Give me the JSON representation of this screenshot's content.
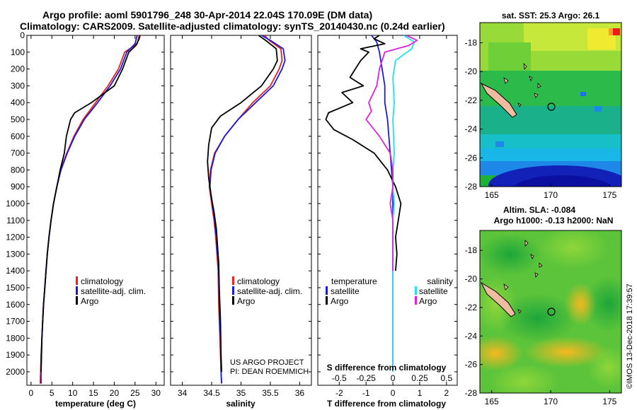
{
  "header": {
    "line1": "Argo profile: aoml 5901796_248 30-Apr-2014 22.04S 170.09E (DM data)",
    "line2": "Climatology: CARS2009. Satellite-adjusted climatology: synTS_20140430.nc (0.24d earlier)"
  },
  "colors": {
    "climatology": "#e8231f",
    "satellite": "#1a1adc",
    "argo": "#000000",
    "salinity_sat": "#22e0f0",
    "salinity_argo": "#e020e0"
  },
  "chart_data": [
    {
      "type": "line",
      "id": "temperature",
      "xlabel": "temperature (deg C)",
      "xlim": [
        -1,
        32
      ],
      "ylim": [
        2080,
        0
      ],
      "xticks": [
        0,
        5,
        10,
        15,
        20,
        25,
        30
      ],
      "yticks": [
        0,
        100,
        200,
        300,
        400,
        500,
        600,
        700,
        800,
        900,
        1000,
        1100,
        1200,
        1300,
        1400,
        1500,
        1600,
        1700,
        1800,
        1900,
        2000
      ],
      "legend": [
        "climatology",
        "satellite-adj. clim.",
        "Argo"
      ],
      "series": [
        {
          "name": "climatology",
          "color": "#e8231f",
          "points": [
            [
              26,
              0
            ],
            [
              25.5,
              50
            ],
            [
              22.5,
              100
            ],
            [
              21,
              200
            ],
            [
              18.5,
              300
            ],
            [
              15.5,
              400
            ],
            [
              12.5,
              500
            ],
            [
              10.3,
              600
            ],
            [
              8.6,
              700
            ],
            [
              7.1,
              800
            ],
            [
              6.2,
              900
            ],
            [
              5.4,
              1000
            ],
            [
              4.8,
              1100
            ],
            [
              4.3,
              1200
            ],
            [
              3.9,
              1300
            ],
            [
              3.6,
              1400
            ],
            [
              3.3,
              1500
            ],
            [
              3.0,
              1600
            ],
            [
              2.8,
              1700
            ],
            [
              2.6,
              1800
            ],
            [
              2.4,
              1900
            ],
            [
              2.3,
              2000
            ],
            [
              2.2,
              2070
            ]
          ]
        },
        {
          "name": "satellite-adj. clim.",
          "color": "#1a1adc",
          "points": [
            [
              25.5,
              0
            ],
            [
              25,
              50
            ],
            [
              23,
              100
            ],
            [
              21.5,
              200
            ],
            [
              19,
              300
            ],
            [
              16,
              400
            ],
            [
              12.8,
              500
            ],
            [
              10.5,
              600
            ],
            [
              8.7,
              700
            ],
            [
              7.2,
              800
            ],
            [
              6.2,
              900
            ],
            [
              5.4,
              1000
            ],
            [
              4.8,
              1100
            ],
            [
              4.3,
              1200
            ],
            [
              3.9,
              1300
            ],
            [
              3.6,
              1400
            ],
            [
              3.3,
              1500
            ],
            [
              3.0,
              1600
            ],
            [
              2.8,
              1700
            ],
            [
              2.6,
              1800
            ],
            [
              2.5,
              1900
            ],
            [
              2.4,
              2000
            ],
            [
              2.4,
              2070
            ]
          ]
        },
        {
          "name": "Argo",
          "color": "#000000",
          "points": [
            [
              26.2,
              0
            ],
            [
              26,
              20
            ],
            [
              25.2,
              60
            ],
            [
              23.5,
              100
            ],
            [
              22,
              200
            ],
            [
              20,
              300
            ],
            [
              14.5,
              400
            ],
            [
              10.5,
              460
            ],
            [
              9.5,
              500
            ],
            [
              8.5,
              600
            ],
            [
              8,
              700
            ],
            [
              7,
              800
            ],
            [
              6.2,
              900
            ],
            [
              5.4,
              1000
            ],
            [
              4.8,
              1100
            ],
            [
              4.3,
              1200
            ],
            [
              3.9,
              1300
            ],
            [
              3.6,
              1400
            ],
            [
              3.3,
              1500
            ],
            [
              3.0,
              1600
            ],
            [
              2.8,
              1700
            ],
            [
              2.6,
              1800
            ],
            [
              2.5,
              1900
            ],
            [
              2.4,
              2000
            ]
          ]
        }
      ]
    },
    {
      "type": "line",
      "id": "salinity",
      "xlabel": "salinity",
      "xlim": [
        33.8,
        36.2
      ],
      "ylim": [
        2080,
        0
      ],
      "xticks": [
        34,
        34.5,
        35,
        35.5,
        36
      ],
      "legend": [
        "climatology",
        "satellite-adj. clim.",
        "Argo"
      ],
      "series": [
        {
          "name": "climatology",
          "color": "#e8231f",
          "points": [
            [
              35.4,
              0
            ],
            [
              35.48,
              30
            ],
            [
              35.68,
              80
            ],
            [
              35.7,
              150
            ],
            [
              35.65,
              200
            ],
            [
              35.5,
              300
            ],
            [
              35.2,
              400
            ],
            [
              34.95,
              500
            ],
            [
              34.72,
              600
            ],
            [
              34.55,
              700
            ],
            [
              34.48,
              800
            ],
            [
              34.46,
              900
            ],
            [
              34.5,
              1000
            ],
            [
              34.54,
              1100
            ],
            [
              34.57,
              1200
            ],
            [
              34.59,
              1300
            ],
            [
              34.61,
              1400
            ],
            [
              34.62,
              1600
            ],
            [
              34.64,
              1800
            ],
            [
              34.66,
              2000
            ],
            [
              34.67,
              2070
            ]
          ]
        },
        {
          "name": "satellite-adj. clim.",
          "color": "#1a1adc",
          "points": [
            [
              35.35,
              0
            ],
            [
              35.5,
              30
            ],
            [
              35.72,
              80
            ],
            [
              35.75,
              150
            ],
            [
              35.7,
              200
            ],
            [
              35.55,
              300
            ],
            [
              35.25,
              400
            ],
            [
              34.95,
              500
            ],
            [
              34.72,
              600
            ],
            [
              34.56,
              700
            ],
            [
              34.49,
              800
            ],
            [
              34.47,
              900
            ],
            [
              34.51,
              1000
            ],
            [
              34.55,
              1100
            ],
            [
              34.58,
              1200
            ],
            [
              34.6,
              1300
            ],
            [
              34.62,
              1400
            ],
            [
              34.63,
              1600
            ],
            [
              34.65,
              1800
            ],
            [
              34.66,
              2000
            ],
            [
              34.67,
              2070
            ]
          ]
        },
        {
          "name": "Argo",
          "color": "#000000",
          "points": [
            [
              35.3,
              0
            ],
            [
              35.42,
              30
            ],
            [
              35.6,
              80
            ],
            [
              35.62,
              150
            ],
            [
              35.55,
              200
            ],
            [
              35.35,
              300
            ],
            [
              35,
              400
            ],
            [
              34.65,
              480
            ],
            [
              34.5,
              550
            ],
            [
              34.45,
              650
            ],
            [
              34.43,
              750
            ],
            [
              34.45,
              850
            ],
            [
              34.49,
              950
            ],
            [
              34.54,
              1050
            ],
            [
              34.58,
              1150
            ],
            [
              34.6,
              1250
            ],
            [
              34.62,
              1350
            ],
            [
              34.63,
              1500
            ],
            [
              34.65,
              1700
            ],
            [
              34.66,
              1900
            ],
            [
              34.67,
              2000
            ]
          ]
        }
      ]
    },
    {
      "type": "line",
      "id": "difference",
      "xlabel": "T difference from climatology",
      "xlabel2": "S difference from climatology",
      "xlim": [
        -2.8,
        2.4
      ],
      "ylim": [
        2080,
        0
      ],
      "xticks": [
        -2,
        -1,
        0,
        1,
        2
      ],
      "xticks2_labels": [
        "-0.5",
        "-0.25",
        "0",
        "0.25",
        "0.5"
      ],
      "legend_left_title": "temperature",
      "legend_right_title": "salinity",
      "legend_left": [
        "satellite",
        "Argo"
      ],
      "legend_right": [
        "satellite",
        "Argo"
      ],
      "series": [
        {
          "name": "temperature satellite",
          "color": "#1a1adc",
          "points": [
            [
              -0.8,
              0
            ],
            [
              -0.6,
              40
            ],
            [
              -0.5,
              100
            ],
            [
              -0.4,
              200
            ],
            [
              -0.3,
              300
            ],
            [
              -0.3,
              400
            ],
            [
              -0.2,
              500
            ],
            [
              -0.15,
              600
            ],
            [
              -0.1,
              700
            ],
            [
              -0.05,
              800
            ],
            [
              0,
              900
            ],
            [
              0,
              1000
            ],
            [
              0,
              2000
            ]
          ]
        },
        {
          "name": "temperature Argo",
          "color": "#000000",
          "points": [
            [
              -0.5,
              0
            ],
            [
              -0.7,
              20
            ],
            [
              -0.3,
              50
            ],
            [
              -1.2,
              80
            ],
            [
              -0.9,
              100
            ],
            [
              -1.2,
              150
            ],
            [
              -1.4,
              200
            ],
            [
              -1.6,
              250
            ],
            [
              -1.1,
              300
            ],
            [
              -1.9,
              340
            ],
            [
              -1.5,
              400
            ],
            [
              -2.4,
              460
            ],
            [
              -2.5,
              500
            ],
            [
              -2.2,
              560
            ],
            [
              -1.5,
              620
            ],
            [
              -0.7,
              700
            ],
            [
              -0.2,
              800
            ],
            [
              0.1,
              900
            ],
            [
              0.3,
              1000
            ],
            [
              0.2,
              1100
            ],
            [
              0.1,
              1200
            ],
            [
              0.15,
              1300
            ],
            [
              0.1,
              1400
            ]
          ]
        },
        {
          "name": "salinity satellite",
          "color": "#22e0f0",
          "points": [
            [
              0.4,
              0
            ],
            [
              0.8,
              40
            ],
            [
              0.7,
              80
            ],
            [
              0.1,
              150
            ],
            [
              0,
              250
            ],
            [
              0.05,
              400
            ],
            [
              0,
              500
            ],
            [
              0.05,
              700
            ],
            [
              0,
              800
            ],
            [
              0,
              900
            ],
            [
              0.05,
              1000
            ],
            [
              0,
              1100
            ],
            [
              0,
              1400
            ],
            [
              0,
              1500
            ],
            [
              0,
              2000
            ]
          ]
        },
        {
          "name": "salinity Argo",
          "color": "#e020e0",
          "points": [
            [
              0.5,
              0
            ],
            [
              0.9,
              30
            ],
            [
              0.6,
              60
            ],
            [
              -0.3,
              100
            ],
            [
              -0.5,
              200
            ],
            [
              -0.6,
              300
            ],
            [
              -0.9,
              400
            ],
            [
              -0.8,
              450
            ],
            [
              -1.0,
              500
            ],
            [
              -0.5,
              600
            ],
            [
              -0.1,
              700
            ],
            [
              0,
              800
            ],
            [
              0,
              900
            ],
            [
              -0.1,
              1000
            ],
            [
              0,
              1100
            ],
            [
              0,
              1200
            ],
            [
              0,
              1300
            ],
            [
              0,
              1400
            ]
          ]
        }
      ]
    },
    {
      "type": "heatmap",
      "id": "sst_map",
      "title": "sat. SST: 25.3 Argo: 26.1",
      "xticks": [
        165,
        170,
        175
      ],
      "yticks": [
        -18,
        -20,
        -22,
        -24,
        -26,
        -28
      ],
      "xlim": [
        164,
        176
      ],
      "ylim": [
        -28,
        -16.6
      ]
    },
    {
      "type": "heatmap",
      "id": "sla_map",
      "title": "Altim. SLA: -0.084",
      "title2": "Argo h1000: -0.13 h2000: NaN",
      "xticks": [
        165,
        170,
        175
      ],
      "yticks": [
        -18,
        -20,
        -22,
        -24,
        -26,
        -28
      ],
      "xlim": [
        164,
        176
      ],
      "ylim": [
        -28,
        -16.6
      ]
    }
  ],
  "annotations": {
    "project_line1": "US ARGO PROJECT",
    "project_line2": "PI: DEAN ROEMMICH",
    "credit": "©IMOS 13-Dec-2018 17:39:57"
  }
}
